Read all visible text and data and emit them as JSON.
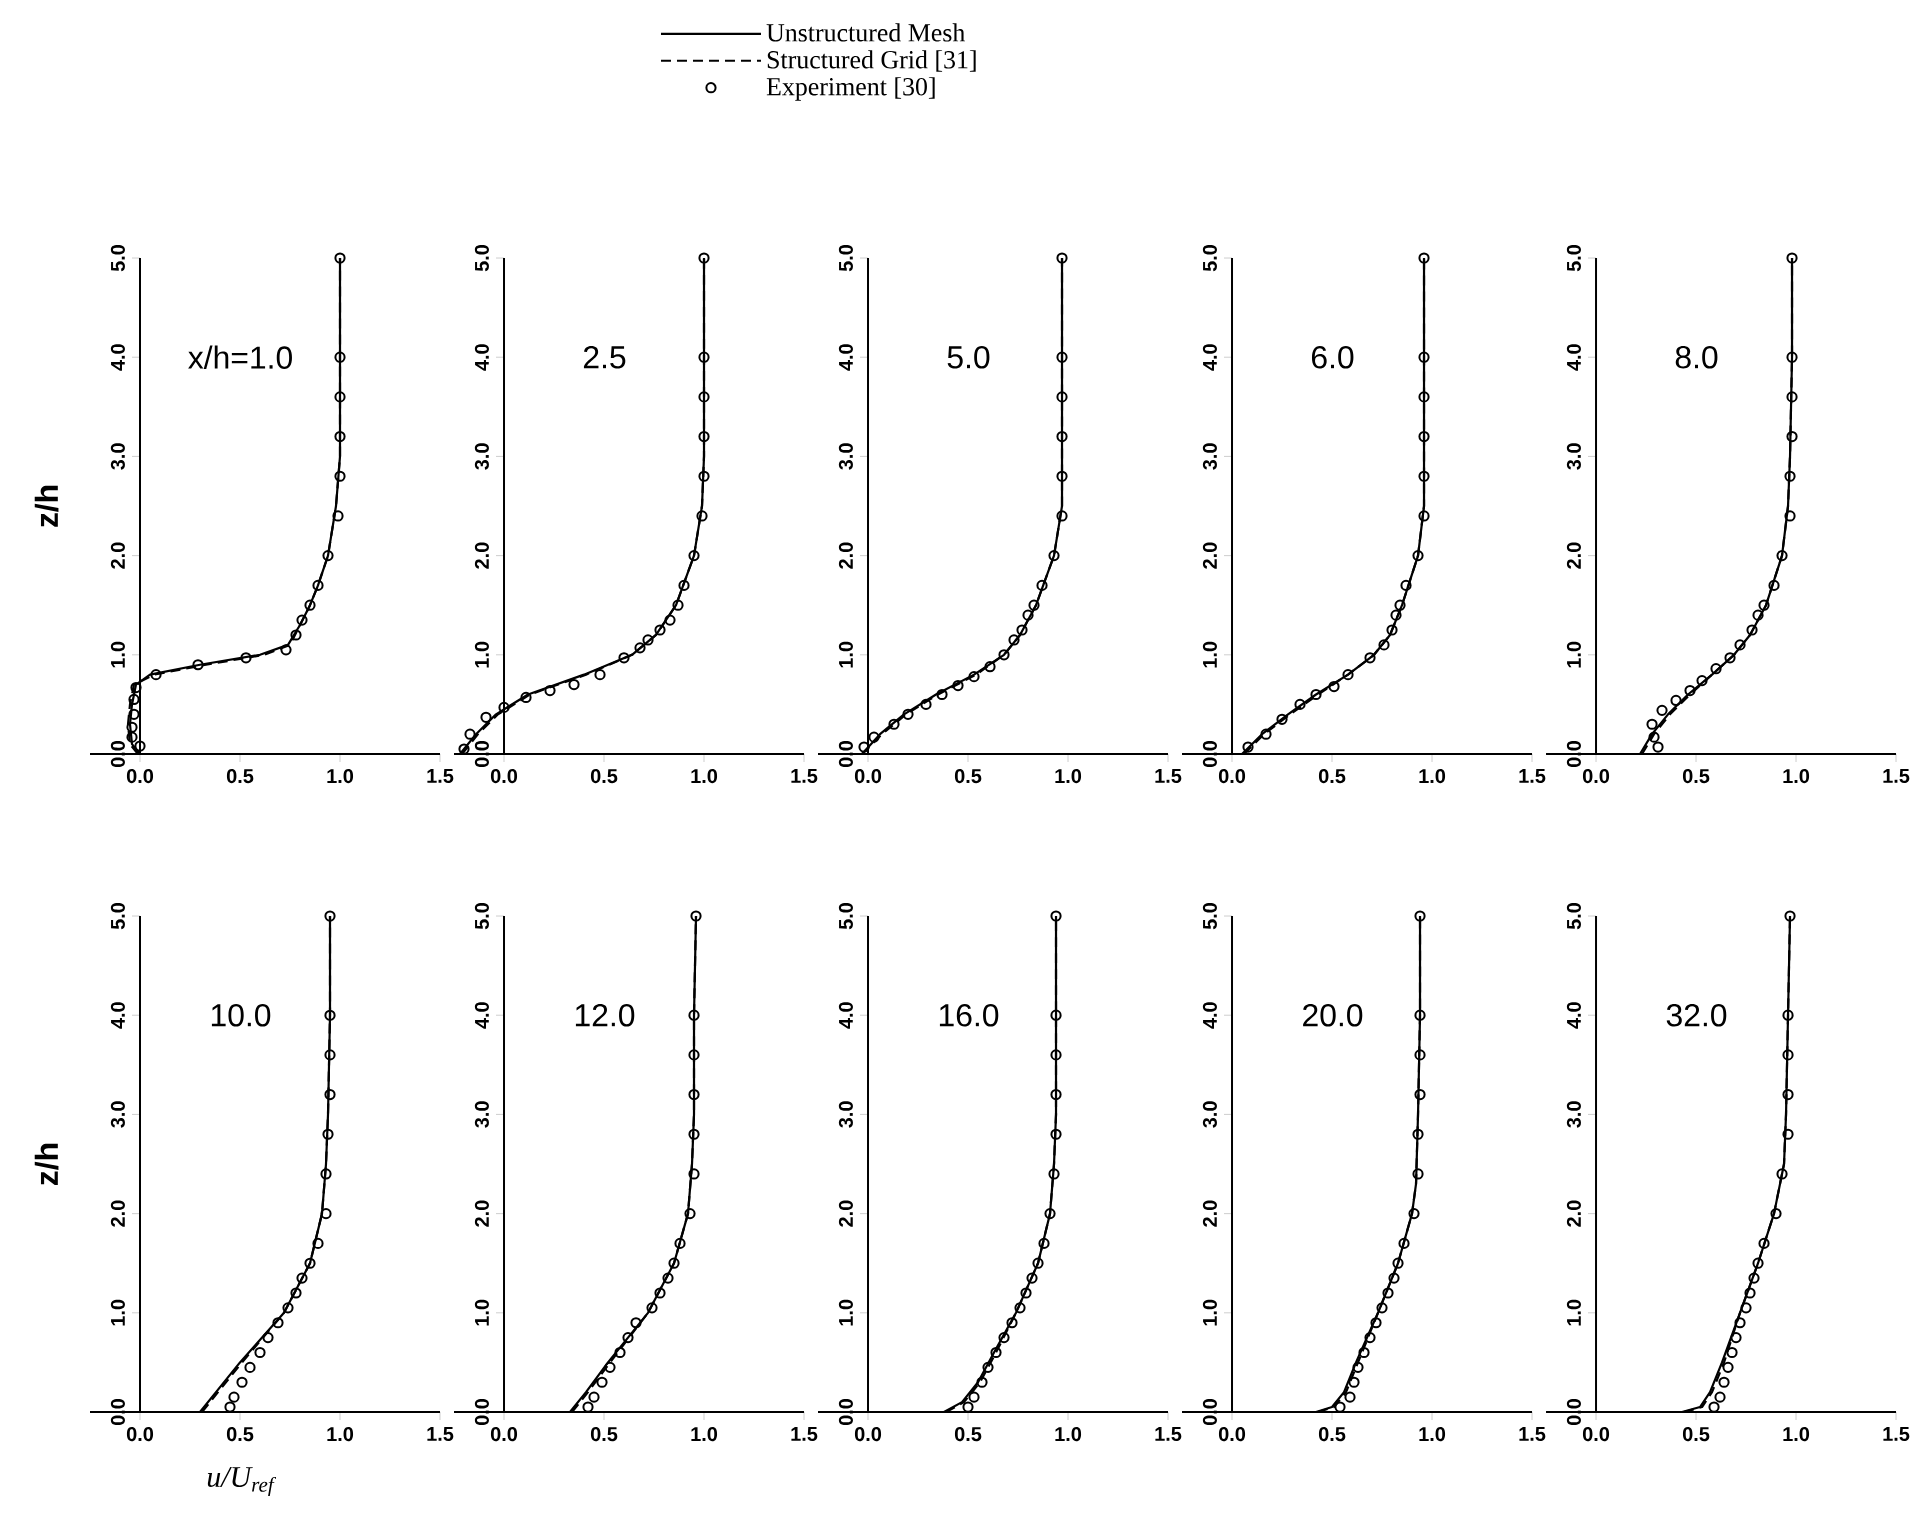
{
  "chart_data": [
    {
      "type": "line",
      "ylabel": "z/h",
      "annotations": [
        "x/h=1.0"
      ],
      "xlim": [
        -0.25,
        1.5
      ],
      "ylim": [
        0,
        5
      ],
      "xticks": [
        {
          "value": 0,
          "label": "0.0"
        },
        {
          "value": 0.5,
          "label": "0.5"
        },
        {
          "value": 1,
          "label": "1.0"
        },
        {
          "value": 1.5,
          "label": "1.5"
        }
      ],
      "yticks": [
        {
          "value": 0,
          "label": "0.0"
        },
        {
          "value": 1,
          "label": "1.0"
        },
        {
          "value": 2,
          "label": "2.0"
        },
        {
          "value": 3,
          "label": "3.0"
        },
        {
          "value": 4,
          "label": "4.0"
        },
        {
          "value": 5,
          "label": "5.0"
        }
      ],
      "series": [
        {
          "color": "#000000",
          "line_style": "solid",
          "x": [
            0,
            -0.04,
            -0.05,
            -0.04,
            -0.02,
            0.05,
            0.3,
            0.6,
            0.74,
            0.8,
            0.85,
            0.89,
            0.94,
            0.98,
            1.0,
            1.0
          ],
          "values": [
            0,
            0.1,
            0.3,
            0.5,
            0.7,
            0.8,
            0.9,
            1.0,
            1.1,
            1.3,
            1.5,
            1.7,
            2,
            2.5,
            3,
            5
          ]
        },
        {
          "color": "#000000",
          "line_style": "dashed",
          "x": [
            -0.01,
            -0.05,
            -0.06,
            -0.05,
            -0.03,
            0.07,
            0.33,
            0.62,
            0.75,
            0.8,
            0.85,
            0.89,
            0.94,
            0.98,
            1.0,
            1.0
          ],
          "values": [
            0,
            0.1,
            0.3,
            0.5,
            0.7,
            0.8,
            0.9,
            1.0,
            1.1,
            1.3,
            1.5,
            1.7,
            2,
            2.5,
            3,
            5
          ]
        },
        {
          "type": "scatter",
          "marker": "circle",
          "color": "#000000",
          "x": [
            1.0,
            1.0,
            1.0,
            1.0,
            1.0,
            0.99,
            0.94,
            0.89,
            0.85,
            0.81,
            0.78,
            0.73,
            0.53,
            0.29,
            0.08,
            -0.02,
            -0.03,
            -0.03,
            -0.04,
            -0.04,
            0.0
          ],
          "values": [
            5,
            4,
            3.6,
            3.2,
            2.8,
            2.4,
            2,
            1.7,
            1.5,
            1.35,
            1.2,
            1.05,
            0.97,
            0.9,
            0.8,
            0.67,
            0.55,
            0.4,
            0.27,
            0.17,
            0.08
          ]
        }
      ]
    },
    {
      "type": "line",
      "annotations": [
        "2.5"
      ],
      "xlim": [
        -0.25,
        1.5
      ],
      "ylim": [
        0,
        5
      ],
      "xticks": [
        {
          "value": 0,
          "label": "0.0"
        },
        {
          "value": 0.5,
          "label": "0.5"
        },
        {
          "value": 1,
          "label": "1.0"
        },
        {
          "value": 1.5,
          "label": "1.5"
        }
      ],
      "yticks": [
        {
          "value": 0,
          "label": "0.0"
        },
        {
          "value": 1,
          "label": "1.0"
        },
        {
          "value": 2,
          "label": "2.0"
        },
        {
          "value": 3,
          "label": "3.0"
        },
        {
          "value": 4,
          "label": "4.0"
        },
        {
          "value": 5,
          "label": "5.0"
        }
      ],
      "series": [
        {
          "color": "#000000",
          "line_style": "solid",
          "x": [
            -0.22,
            -0.14,
            -0.04,
            0.12,
            0.4,
            0.64,
            0.76,
            0.86,
            0.95,
            0.99,
            1,
            1
          ],
          "values": [
            0,
            0.2,
            0.4,
            0.6,
            0.8,
            1.0,
            1.2,
            1.5,
            2,
            2.5,
            3,
            5
          ]
        },
        {
          "color": "#000000",
          "line_style": "dashed",
          "x": [
            -0.21,
            -0.13,
            -0.03,
            0.13,
            0.41,
            0.64,
            0.76,
            0.86,
            0.95,
            0.99,
            1,
            1
          ],
          "values": [
            0,
            0.2,
            0.4,
            0.6,
            0.8,
            1.0,
            1.2,
            1.5,
            2,
            2.5,
            3,
            5
          ]
        },
        {
          "type": "scatter",
          "marker": "circle",
          "color": "#000000",
          "x": [
            1,
            1,
            1,
            1,
            1,
            0.99,
            0.95,
            0.9,
            0.87,
            0.83,
            0.78,
            0.72,
            0.68,
            0.6,
            0.48,
            0.35,
            0.23,
            0.11,
            0.0,
            -0.09,
            -0.17,
            -0.2
          ],
          "values": [
            5,
            4,
            3.6,
            3.2,
            2.8,
            2.4,
            2,
            1.7,
            1.5,
            1.35,
            1.25,
            1.15,
            1.07,
            0.97,
            0.8,
            0.7,
            0.64,
            0.57,
            0.47,
            0.37,
            0.2,
            0.05
          ]
        }
      ]
    },
    {
      "type": "line",
      "annotations": [
        "5.0"
      ],
      "legend": "top",
      "xlim": [
        -0.25,
        1.5
      ],
      "ylim": [
        0,
        5
      ],
      "xticks": [
        {
          "value": 0,
          "label": "0.0"
        },
        {
          "value": 0.5,
          "label": "0.5"
        },
        {
          "value": 1,
          "label": "1.0"
        },
        {
          "value": 1.5,
          "label": "1.5"
        }
      ],
      "yticks": [
        {
          "value": 0,
          "label": "0.0"
        },
        {
          "value": 1,
          "label": "1.0"
        },
        {
          "value": 2,
          "label": "2.0"
        },
        {
          "value": 3,
          "label": "3.0"
        },
        {
          "value": 4,
          "label": "4.0"
        },
        {
          "value": 5,
          "label": "5.0"
        }
      ],
      "series": [
        {
          "name": "Unstructured Mesh",
          "color": "#000000",
          "line_style": "solid",
          "x": [
            -0.03,
            0.06,
            0.18,
            0.34,
            0.53,
            0.68,
            0.76,
            0.84,
            0.93,
            0.97,
            0.97,
            0.97,
            0.97
          ],
          "values": [
            0,
            0.2,
            0.4,
            0.6,
            0.8,
            1.0,
            1.2,
            1.5,
            2,
            2.5,
            3,
            4,
            5
          ]
        },
        {
          "name": "Structured Grid [31]",
          "color": "#000000",
          "line_style": "dashed",
          "x": [
            -0.03,
            0.07,
            0.19,
            0.35,
            0.54,
            0.68,
            0.76,
            0.84,
            0.93,
            0.97,
            0.97,
            0.97,
            0.97
          ],
          "values": [
            0,
            0.2,
            0.4,
            0.6,
            0.8,
            1.0,
            1.2,
            1.5,
            2,
            2.5,
            3,
            4,
            5
          ]
        },
        {
          "name": "Experiment [30]",
          "type": "scatter",
          "marker": "circle",
          "color": "#000000",
          "x": [
            0.97,
            0.97,
            0.97,
            0.97,
            0.97,
            0.97,
            0.93,
            0.87,
            0.83,
            0.8,
            0.77,
            0.73,
            0.68,
            0.61,
            0.53,
            0.45,
            0.37,
            0.29,
            0.2,
            0.13,
            0.03,
            -0.02
          ],
          "values": [
            5,
            4,
            3.6,
            3.2,
            2.8,
            2.4,
            2,
            1.7,
            1.5,
            1.4,
            1.25,
            1.15,
            1.0,
            0.88,
            0.78,
            0.69,
            0.6,
            0.5,
            0.4,
            0.3,
            0.17,
            0.07
          ]
        }
      ]
    },
    {
      "type": "line",
      "annotations": [
        "6.0"
      ],
      "xlim": [
        -0.25,
        1.5
      ],
      "ylim": [
        0,
        5
      ],
      "xticks": [
        {
          "value": 0,
          "label": "0.0"
        },
        {
          "value": 0.5,
          "label": "0.5"
        },
        {
          "value": 1,
          "label": "1.0"
        },
        {
          "value": 1.5,
          "label": "1.5"
        }
      ],
      "yticks": [
        {
          "value": 0,
          "label": "0.0"
        },
        {
          "value": 1,
          "label": "1.0"
        },
        {
          "value": 2,
          "label": "2.0"
        },
        {
          "value": 3,
          "label": "3.0"
        },
        {
          "value": 4,
          "label": "4.0"
        },
        {
          "value": 5,
          "label": "5.0"
        }
      ],
      "series": [
        {
          "color": "#000000",
          "line_style": "solid",
          "x": [
            0.05,
            0.15,
            0.28,
            0.42,
            0.58,
            0.71,
            0.79,
            0.85,
            0.93,
            0.96,
            0.96,
            0.96,
            0.96
          ],
          "values": [
            0,
            0.2,
            0.4,
            0.6,
            0.8,
            1.0,
            1.2,
            1.5,
            2,
            2.5,
            3,
            4,
            5
          ]
        },
        {
          "color": "#000000",
          "line_style": "dashed",
          "x": [
            0.06,
            0.16,
            0.29,
            0.43,
            0.58,
            0.71,
            0.79,
            0.85,
            0.93,
            0.96,
            0.96,
            0.96,
            0.96
          ],
          "values": [
            0,
            0.2,
            0.4,
            0.6,
            0.8,
            1.0,
            1.2,
            1.5,
            2,
            2.5,
            3,
            4,
            5
          ]
        },
        {
          "type": "scatter",
          "marker": "circle",
          "color": "#000000",
          "x": [
            0.96,
            0.96,
            0.96,
            0.96,
            0.96,
            0.96,
            0.93,
            0.87,
            0.84,
            0.82,
            0.8,
            0.76,
            0.69,
            0.58,
            0.51,
            0.42,
            0.34,
            0.25,
            0.17,
            0.08
          ],
          "values": [
            5,
            4,
            3.6,
            3.2,
            2.8,
            2.4,
            2,
            1.7,
            1.5,
            1.4,
            1.25,
            1.1,
            0.97,
            0.8,
            0.68,
            0.6,
            0.5,
            0.35,
            0.2,
            0.07
          ]
        }
      ]
    },
    {
      "type": "line",
      "annotations": [
        "8.0"
      ],
      "xlim": [
        -0.25,
        1.5
      ],
      "ylim": [
        0,
        5
      ],
      "xticks": [
        {
          "value": 0,
          "label": "0.0"
        },
        {
          "value": 0.5,
          "label": "0.5"
        },
        {
          "value": 1,
          "label": "1.0"
        },
        {
          "value": 1.5,
          "label": "1.5"
        }
      ],
      "yticks": [
        {
          "value": 0,
          "label": "0.0"
        },
        {
          "value": 1,
          "label": "1.0"
        },
        {
          "value": 2,
          "label": "2.0"
        },
        {
          "value": 3,
          "label": "3.0"
        },
        {
          "value": 4,
          "label": "4.0"
        },
        {
          "value": 5,
          "label": "5.0"
        }
      ],
      "series": [
        {
          "color": "#000000",
          "line_style": "solid",
          "x": [
            0.22,
            0.28,
            0.36,
            0.46,
            0.58,
            0.69,
            0.77,
            0.85,
            0.93,
            0.96,
            0.97,
            0.98,
            0.98
          ],
          "values": [
            0,
            0.2,
            0.4,
            0.6,
            0.8,
            1.0,
            1.2,
            1.5,
            2,
            2.5,
            3,
            4,
            5
          ]
        },
        {
          "color": "#000000",
          "line_style": "dashed",
          "x": [
            0.23,
            0.29,
            0.37,
            0.47,
            0.58,
            0.69,
            0.77,
            0.85,
            0.93,
            0.96,
            0.97,
            0.98,
            0.98
          ],
          "values": [
            0,
            0.2,
            0.4,
            0.6,
            0.8,
            1.0,
            1.2,
            1.5,
            2,
            2.5,
            3,
            4,
            5
          ]
        },
        {
          "type": "scatter",
          "marker": "circle",
          "color": "#000000",
          "x": [
            0.98,
            0.98,
            0.98,
            0.98,
            0.97,
            0.97,
            0.93,
            0.89,
            0.84,
            0.81,
            0.78,
            0.72,
            0.67,
            0.6,
            0.53,
            0.47,
            0.4,
            0.33,
            0.28,
            0.29,
            0.31
          ],
          "values": [
            5,
            4,
            3.6,
            3.2,
            2.8,
            2.4,
            2,
            1.7,
            1.5,
            1.4,
            1.25,
            1.1,
            0.97,
            0.86,
            0.74,
            0.64,
            0.54,
            0.44,
            0.3,
            0.17,
            0.07
          ]
        }
      ]
    },
    {
      "type": "line",
      "xlabel": "u/U$_{ref}$",
      "ylabel": "z/h",
      "annotations": [
        "10.0"
      ],
      "xlim": [
        -0.25,
        1.5
      ],
      "ylim": [
        0,
        5
      ],
      "xticks": [
        {
          "value": 0,
          "label": "0.0"
        },
        {
          "value": 0.5,
          "label": "0.5"
        },
        {
          "value": 1,
          "label": "1.0"
        },
        {
          "value": 1.5,
          "label": "1.5"
        }
      ],
      "yticks": [
        {
          "value": 0,
          "label": "0.0"
        },
        {
          "value": 1,
          "label": "1.0"
        },
        {
          "value": 2,
          "label": "2.0"
        },
        {
          "value": 3,
          "label": "3.0"
        },
        {
          "value": 4,
          "label": "4.0"
        },
        {
          "value": 5,
          "label": "5.0"
        }
      ],
      "series": [
        {
          "color": "#000000",
          "line_style": "solid",
          "x": [
            0.3,
            0.38,
            0.5,
            0.72,
            0.85,
            0.91,
            0.93,
            0.94,
            0.95,
            0.95
          ],
          "values": [
            0,
            0.2,
            0.5,
            1.0,
            1.5,
            2,
            2.5,
            3,
            4,
            5
          ]
        },
        {
          "color": "#000000",
          "line_style": "dashed",
          "x": [
            0.31,
            0.39,
            0.51,
            0.72,
            0.85,
            0.91,
            0.93,
            0.94,
            0.95,
            0.95
          ],
          "values": [
            0,
            0.2,
            0.5,
            1.0,
            1.5,
            2,
            2.5,
            3,
            4,
            5
          ]
        },
        {
          "type": "scatter",
          "marker": "circle",
          "color": "#000000",
          "x": [
            0.95,
            0.95,
            0.95,
            0.95,
            0.94,
            0.93,
            0.93,
            0.89,
            0.85,
            0.81,
            0.78,
            0.74,
            0.69,
            0.64,
            0.6,
            0.55,
            0.51,
            0.47,
            0.45
          ],
          "values": [
            5,
            4,
            3.6,
            3.2,
            2.8,
            2.4,
            2,
            1.7,
            1.5,
            1.35,
            1.2,
            1.05,
            0.9,
            0.75,
            0.6,
            0.45,
            0.3,
            0.15,
            0.05
          ]
        }
      ]
    },
    {
      "type": "line",
      "annotations": [
        "12.0"
      ],
      "xlim": [
        -0.25,
        1.5
      ],
      "ylim": [
        0,
        5
      ],
      "xticks": [
        {
          "value": 0,
          "label": "0.0"
        },
        {
          "value": 0.5,
          "label": "0.5"
        },
        {
          "value": 1,
          "label": "1.0"
        },
        {
          "value": 1.5,
          "label": "1.5"
        }
      ],
      "yticks": [
        {
          "value": 0,
          "label": "0.0"
        },
        {
          "value": 1,
          "label": "1.0"
        },
        {
          "value": 2,
          "label": "2.0"
        },
        {
          "value": 3,
          "label": "3.0"
        },
        {
          "value": 4,
          "label": "4.0"
        },
        {
          "value": 5,
          "label": "5.0"
        }
      ],
      "series": [
        {
          "color": "#000000",
          "line_style": "solid",
          "x": [
            0.33,
            0.41,
            0.52,
            0.72,
            0.85,
            0.92,
            0.94,
            0.95,
            0.95,
            0.96
          ],
          "values": [
            0,
            0.2,
            0.5,
            1.0,
            1.5,
            2,
            2.5,
            3,
            4,
            5
          ]
        },
        {
          "color": "#000000",
          "line_style": "dashed",
          "x": [
            0.34,
            0.42,
            0.53,
            0.72,
            0.85,
            0.92,
            0.94,
            0.95,
            0.95,
            0.96
          ],
          "values": [
            0,
            0.2,
            0.5,
            1.0,
            1.5,
            2,
            2.5,
            3,
            4,
            5
          ]
        },
        {
          "type": "scatter",
          "marker": "circle",
          "color": "#000000",
          "x": [
            0.96,
            0.95,
            0.95,
            0.95,
            0.95,
            0.95,
            0.93,
            0.88,
            0.85,
            0.82,
            0.78,
            0.74,
            0.66,
            0.62,
            0.58,
            0.53,
            0.49,
            0.45,
            0.42
          ],
          "values": [
            5,
            4,
            3.6,
            3.2,
            2.8,
            2.4,
            2,
            1.7,
            1.5,
            1.35,
            1.2,
            1.05,
            0.9,
            0.75,
            0.6,
            0.45,
            0.3,
            0.15,
            0.05
          ]
        }
      ]
    },
    {
      "type": "line",
      "annotations": [
        "16.0"
      ],
      "xlim": [
        -0.25,
        1.5
      ],
      "ylim": [
        0,
        5
      ],
      "xticks": [
        {
          "value": 0,
          "label": "0.0"
        },
        {
          "value": 0.5,
          "label": "0.5"
        },
        {
          "value": 1,
          "label": "1.0"
        },
        {
          "value": 1.5,
          "label": "1.5"
        }
      ],
      "yticks": [
        {
          "value": 0,
          "label": "0.0"
        },
        {
          "value": 1,
          "label": "1.0"
        },
        {
          "value": 2,
          "label": "2.0"
        },
        {
          "value": 3,
          "label": "3.0"
        },
        {
          "value": 4,
          "label": "4.0"
        },
        {
          "value": 5,
          "label": "5.0"
        }
      ],
      "series": [
        {
          "color": "#000000",
          "line_style": "solid",
          "x": [
            0.38,
            0.47,
            0.55,
            0.63,
            0.74,
            0.85,
            0.91,
            0.93,
            0.94,
            0.94
          ],
          "values": [
            0,
            0.1,
            0.3,
            0.6,
            1.0,
            1.5,
            2,
            2.5,
            3,
            5
          ]
        },
        {
          "color": "#000000",
          "line_style": "dashed",
          "x": [
            0.39,
            0.48,
            0.56,
            0.64,
            0.74,
            0.85,
            0.91,
            0.93,
            0.94,
            0.94
          ],
          "values": [
            0,
            0.1,
            0.3,
            0.6,
            1.0,
            1.5,
            2,
            2.5,
            3,
            5
          ]
        },
        {
          "type": "scatter",
          "marker": "circle",
          "color": "#000000",
          "x": [
            0.94,
            0.94,
            0.94,
            0.94,
            0.94,
            0.93,
            0.91,
            0.88,
            0.85,
            0.82,
            0.79,
            0.76,
            0.72,
            0.68,
            0.64,
            0.6,
            0.57,
            0.53,
            0.5
          ],
          "values": [
            5,
            4,
            3.6,
            3.2,
            2.8,
            2.4,
            2,
            1.7,
            1.5,
            1.35,
            1.2,
            1.05,
            0.9,
            0.75,
            0.6,
            0.45,
            0.3,
            0.15,
            0.05
          ]
        }
      ]
    },
    {
      "type": "line",
      "annotations": [
        "20.0"
      ],
      "xlim": [
        -0.25,
        1.5
      ],
      "ylim": [
        0,
        5
      ],
      "xticks": [
        {
          "value": 0,
          "label": "0.0"
        },
        {
          "value": 0.5,
          "label": "0.5"
        },
        {
          "value": 1,
          "label": "1.0"
        },
        {
          "value": 1.5,
          "label": "1.5"
        }
      ],
      "yticks": [
        {
          "value": 0,
          "label": "0.0"
        },
        {
          "value": 1,
          "label": "1.0"
        },
        {
          "value": 2,
          "label": "2.0"
        },
        {
          "value": 3,
          "label": "3.0"
        },
        {
          "value": 4,
          "label": "4.0"
        },
        {
          "value": 5,
          "label": "5.0"
        }
      ],
      "series": [
        {
          "color": "#000000",
          "line_style": "solid",
          "x": [
            0.42,
            0.5,
            0.56,
            0.62,
            0.73,
            0.83,
            0.9,
            0.92,
            0.93,
            0.94,
            0.94
          ],
          "values": [
            0,
            0.05,
            0.2,
            0.5,
            1.0,
            1.5,
            2,
            2.3,
            3,
            4,
            5
          ]
        },
        {
          "color": "#000000",
          "line_style": "dashed",
          "x": [
            0.43,
            0.51,
            0.57,
            0.63,
            0.73,
            0.83,
            0.9,
            0.92,
            0.93,
            0.94,
            0.94
          ],
          "values": [
            0,
            0.05,
            0.2,
            0.5,
            1.0,
            1.5,
            2,
            2.3,
            3,
            4,
            5
          ]
        },
        {
          "type": "scatter",
          "marker": "circle",
          "color": "#000000",
          "x": [
            0.94,
            0.94,
            0.94,
            0.94,
            0.93,
            0.93,
            0.91,
            0.86,
            0.83,
            0.81,
            0.78,
            0.75,
            0.72,
            0.69,
            0.66,
            0.63,
            0.61,
            0.59,
            0.54
          ],
          "values": [
            5,
            4,
            3.6,
            3.2,
            2.8,
            2.4,
            2,
            1.7,
            1.5,
            1.35,
            1.2,
            1.05,
            0.9,
            0.75,
            0.6,
            0.45,
            0.3,
            0.15,
            0.05
          ]
        }
      ]
    },
    {
      "type": "line",
      "annotations": [
        "32.0"
      ],
      "xlim": [
        -0.25,
        1.5
      ],
      "ylim": [
        0,
        5
      ],
      "xticks": [
        {
          "value": 0,
          "label": "0.0"
        },
        {
          "value": 0.5,
          "label": "0.5"
        },
        {
          "value": 1,
          "label": "1.0"
        },
        {
          "value": 1.5,
          "label": "1.5"
        }
      ],
      "yticks": [
        {
          "value": 0,
          "label": "0.0"
        },
        {
          "value": 1,
          "label": "1.0"
        },
        {
          "value": 2,
          "label": "2.0"
        },
        {
          "value": 3,
          "label": "3.0"
        },
        {
          "value": 4,
          "label": "4.0"
        },
        {
          "value": 5,
          "label": "5.0"
        }
      ],
      "series": [
        {
          "color": "#000000",
          "line_style": "solid",
          "x": [
            0.43,
            0.52,
            0.57,
            0.63,
            0.72,
            0.81,
            0.89,
            0.94,
            0.95,
            0.96,
            0.97
          ],
          "values": [
            0,
            0.05,
            0.2,
            0.5,
            1.0,
            1.5,
            2,
            2.5,
            3,
            4,
            5
          ]
        },
        {
          "color": "#000000",
          "line_style": "dashed",
          "x": [
            0.44,
            0.53,
            0.58,
            0.64,
            0.72,
            0.81,
            0.89,
            0.94,
            0.95,
            0.96,
            0.97
          ],
          "values": [
            0,
            0.05,
            0.2,
            0.5,
            1.0,
            1.5,
            2,
            2.5,
            3,
            4,
            5
          ]
        },
        {
          "type": "scatter",
          "marker": "circle",
          "color": "#000000",
          "x": [
            0.97,
            0.96,
            0.96,
            0.96,
            0.96,
            0.93,
            0.9,
            0.84,
            0.81,
            0.79,
            0.77,
            0.75,
            0.72,
            0.7,
            0.68,
            0.66,
            0.64,
            0.62,
            0.59
          ],
          "values": [
            5,
            4,
            3.6,
            3.2,
            2.8,
            2.4,
            2,
            1.7,
            1.5,
            1.35,
            1.2,
            1.05,
            0.9,
            0.75,
            0.6,
            0.45,
            0.3,
            0.15,
            0.05
          ]
        }
      ]
    }
  ]
}
